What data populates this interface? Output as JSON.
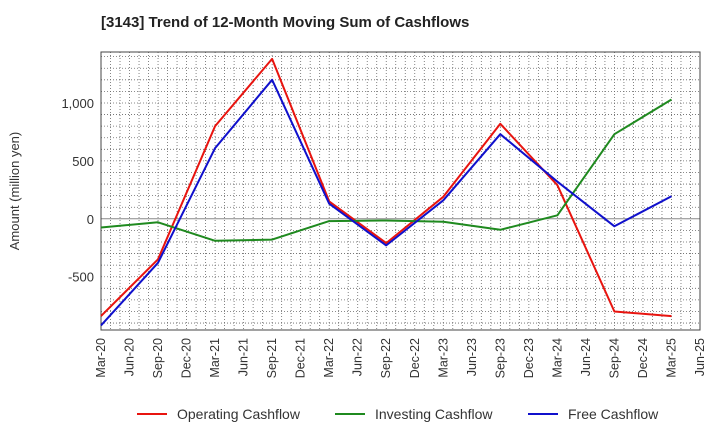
{
  "chart_data": {
    "type": "line",
    "title": "[3143]  Trend of 12-Month Moving Sum of Cashflows",
    "xlabel": "",
    "ylabel": "Amount (million yen)",
    "categories": [
      "Mar-20",
      "Jun-20",
      "Sep-20",
      "Dec-20",
      "Mar-21",
      "Jun-21",
      "Sep-21",
      "Dec-21",
      "Mar-22",
      "Jun-22",
      "Sep-22",
      "Dec-22",
      "Mar-23",
      "Jun-23",
      "Sep-23",
      "Dec-23",
      "Mar-24",
      "Jun-24",
      "Sep-24",
      "Dec-24",
      "Mar-25",
      "Jun-25"
    ],
    "ylim": [
      -960,
      1440
    ],
    "yticks": [
      -500,
      0,
      500,
      1000
    ],
    "ytick_labels": [
      "-500",
      "0",
      "500",
      "1,000"
    ],
    "grid": true,
    "legend_position": "bottom",
    "series": [
      {
        "name": "Operating Cashflow",
        "color": "#e8140f",
        "points": [
          [
            "Mar-20",
            -840
          ],
          [
            "Sep-20",
            -350
          ],
          [
            "Mar-21",
            800
          ],
          [
            "Sep-21",
            1380
          ],
          [
            "Mar-22",
            150
          ],
          [
            "Sep-22",
            -210
          ],
          [
            "Mar-23",
            190
          ],
          [
            "Sep-23",
            820
          ],
          [
            "Mar-24",
            290
          ],
          [
            "Sep-24",
            -800
          ],
          [
            "Mar-25",
            -840
          ]
        ]
      },
      {
        "name": "Investing Cashflow",
        "color": "#1f8a1f",
        "points": [
          [
            "Mar-20",
            -75
          ],
          [
            "Sep-20",
            -30
          ],
          [
            "Mar-21",
            -190
          ],
          [
            "Sep-21",
            -180
          ],
          [
            "Mar-22",
            -20
          ],
          [
            "Sep-22",
            -15
          ],
          [
            "Mar-23",
            -25
          ],
          [
            "Sep-23",
            -95
          ],
          [
            "Mar-24",
            30
          ],
          [
            "Sep-24",
            730
          ],
          [
            "Mar-25",
            1030
          ]
        ]
      },
      {
        "name": "Free Cashflow",
        "color": "#1010cc",
        "points": [
          [
            "Mar-20",
            -920
          ],
          [
            "Sep-20",
            -380
          ],
          [
            "Mar-21",
            610
          ],
          [
            "Sep-21",
            1200
          ],
          [
            "Mar-22",
            130
          ],
          [
            "Sep-22",
            -230
          ],
          [
            "Mar-23",
            160
          ],
          [
            "Sep-23",
            730
          ],
          [
            "Mar-24",
            320
          ],
          [
            "Sep-24",
            -65
          ],
          [
            "Mar-25",
            195
          ]
        ]
      }
    ]
  }
}
